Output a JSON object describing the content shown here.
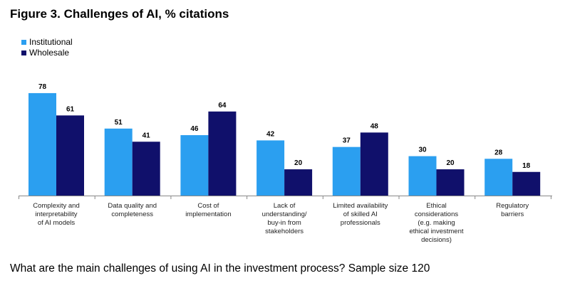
{
  "colors": {
    "institutional": "#2b9ff0",
    "wholesale": "#10106b",
    "axis": "#888888"
  },
  "chart_data": {
    "type": "bar",
    "title": "Figure 3. Challenges of AI, % citations",
    "xlabel": "",
    "ylabel": "",
    "ylim": [
      0,
      85
    ],
    "grid": false,
    "legend_position": "top-left",
    "categories": [
      [
        "Complexity and",
        "interpretability",
        "of AI models"
      ],
      [
        "Data quality and",
        "completeness"
      ],
      [
        "Cost of",
        "implementation"
      ],
      [
        "Lack of",
        "understanding/",
        "buy-in from",
        "stakeholders"
      ],
      [
        "Limited availability",
        "of skilled AI",
        "professionals"
      ],
      [
        "Ethical",
        "considerations",
        "(e.g. making",
        "ethical investment",
        "decisions)"
      ],
      [
        "Regulatory",
        "barriers"
      ]
    ],
    "series": [
      {
        "name": "Institutional",
        "values": [
          78,
          51,
          46,
          42,
          37,
          30,
          28
        ]
      },
      {
        "name": "Wholesale",
        "values": [
          61,
          41,
          64,
          20,
          48,
          20,
          18
        ]
      }
    ]
  },
  "footer": {
    "question": "What are the main challenges of using AI in the investment process? Sample size 120"
  }
}
